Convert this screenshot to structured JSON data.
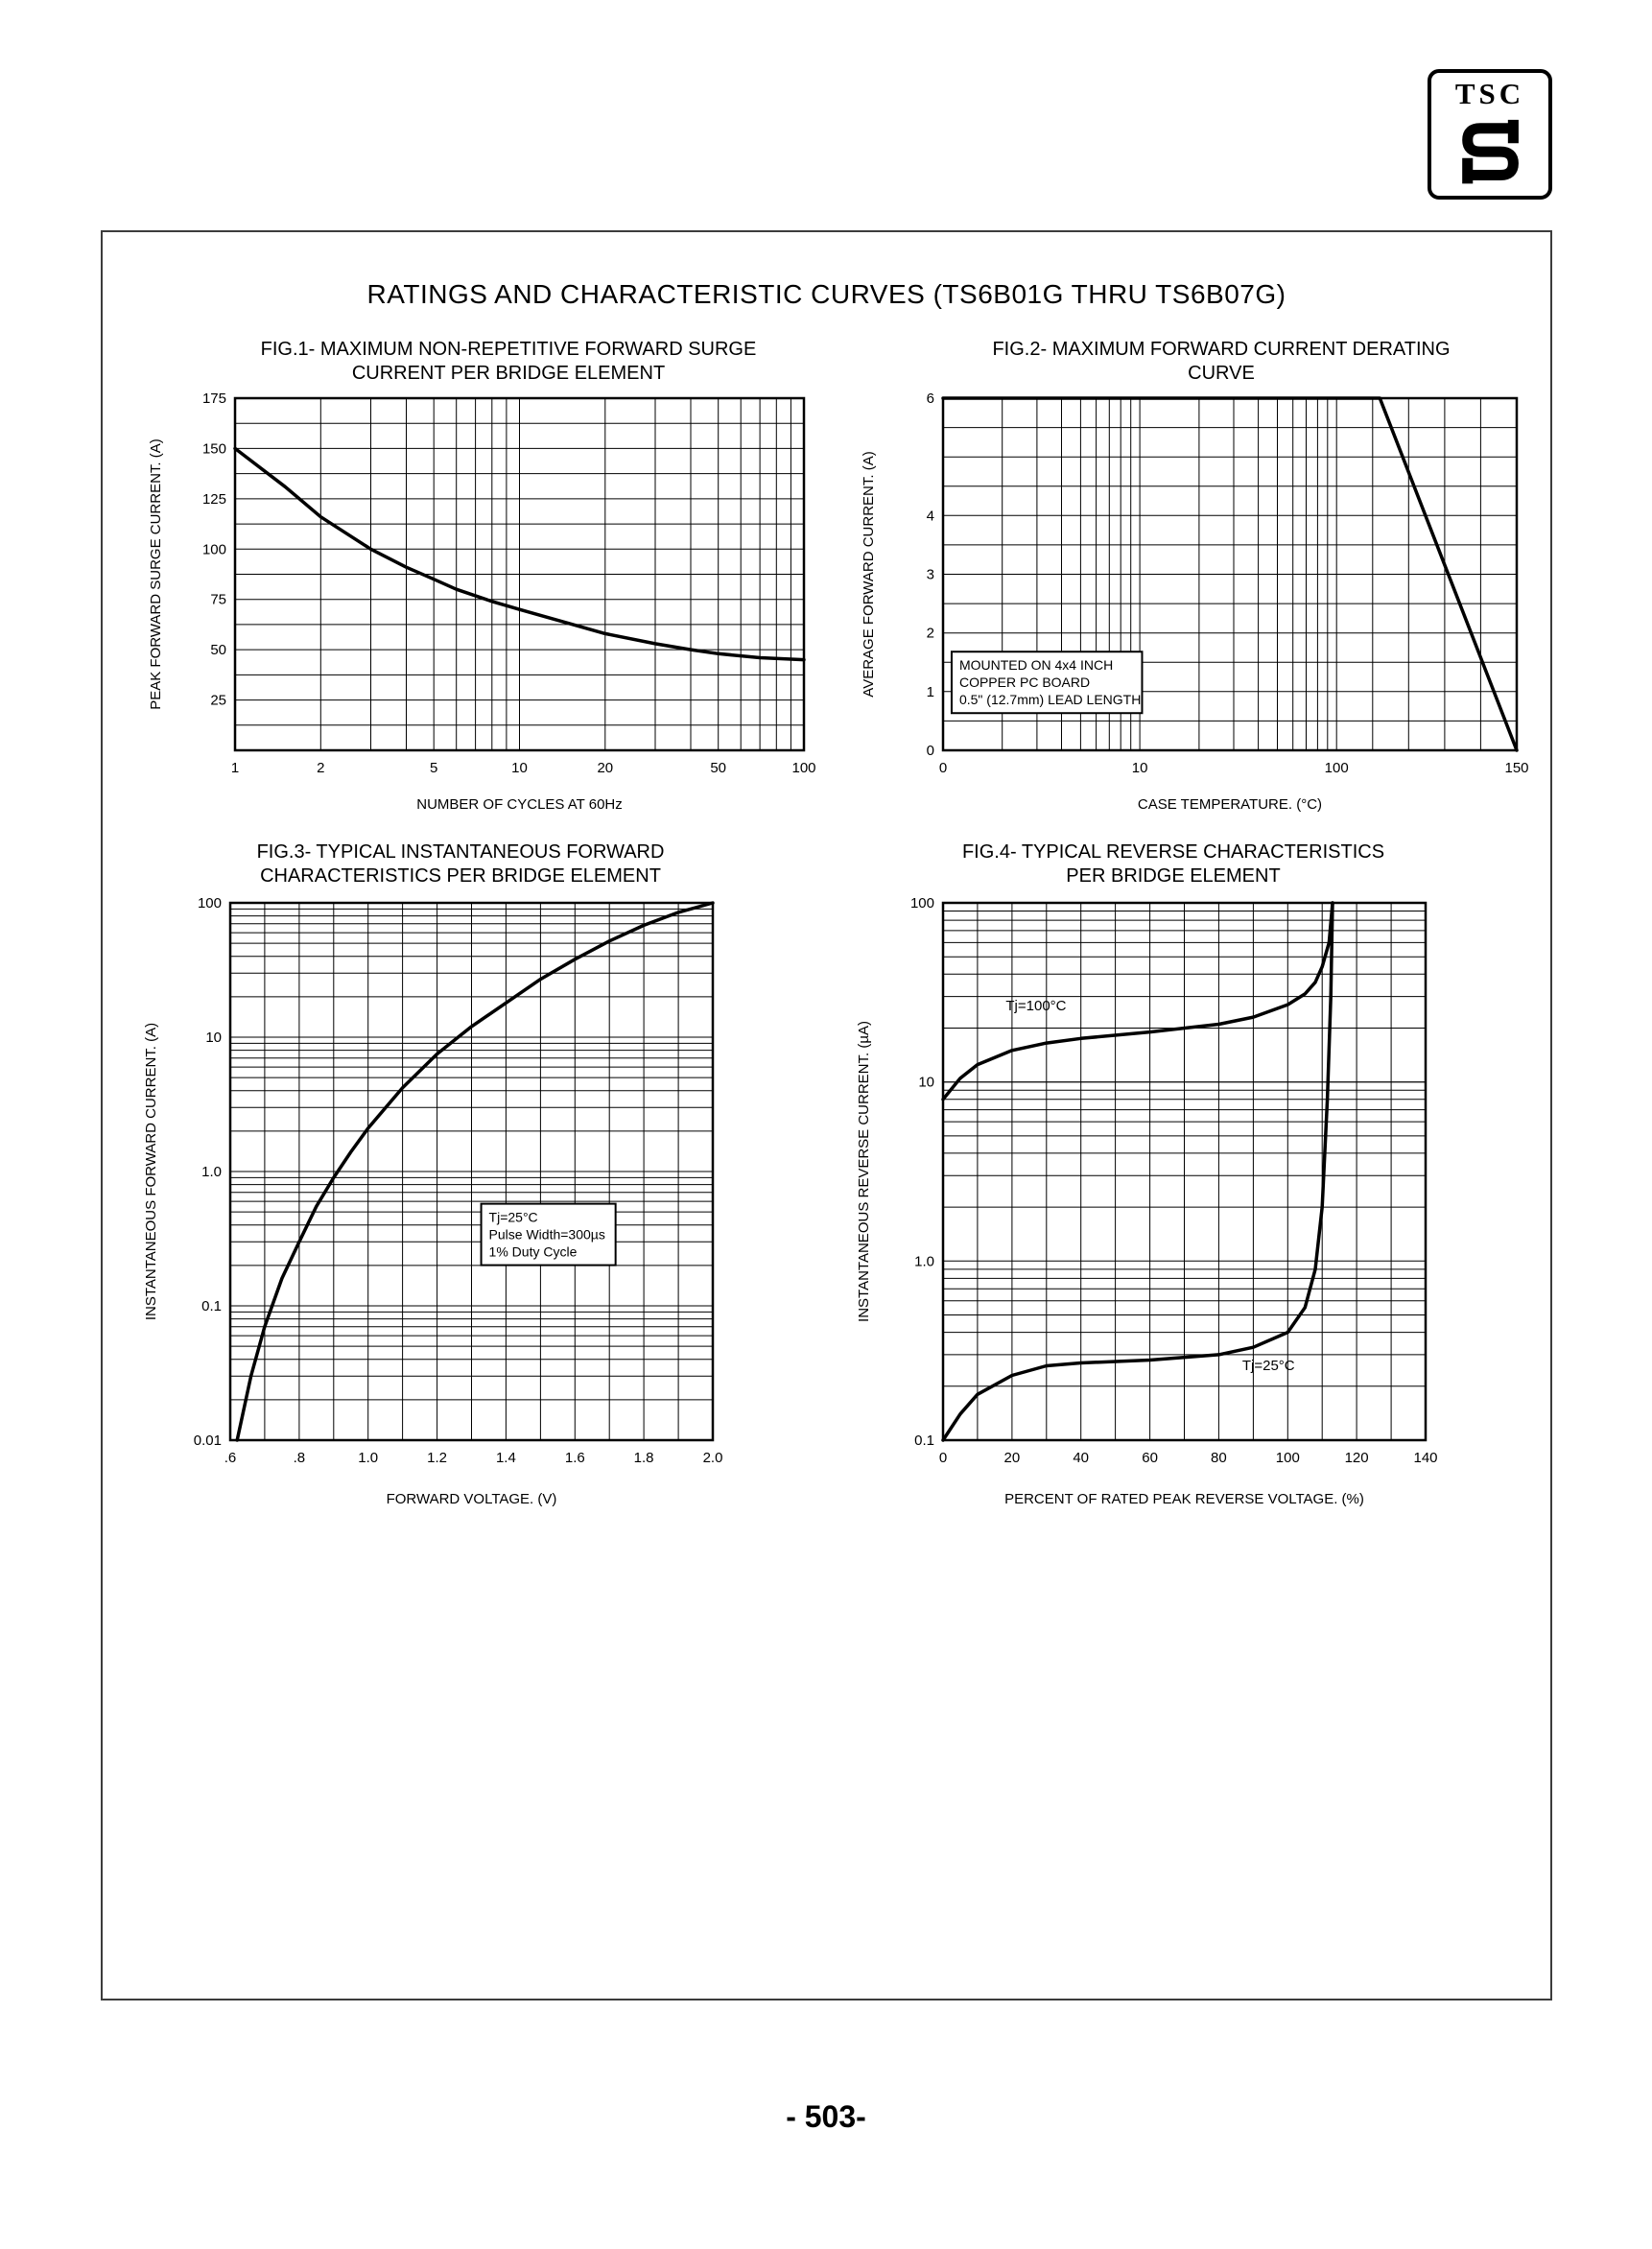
{
  "page": {
    "title": "RATINGS AND CHARACTERISTIC CURVES (TS6B01G THRU TS6B07G)",
    "page_number": "- 503-",
    "logo_text": "TSC"
  },
  "chart_data": [
    {
      "id": "fig1",
      "type": "line",
      "title_lines": [
        "FIG.1- MAXIMUM NON-REPETITIVE FORWARD SURGE",
        "CURRENT PER BRIDGE ELEMENT"
      ],
      "xlabel": "NUMBER OF CYCLES AT 60Hz",
      "ylabel": "PEAK FORWARD SURGE CURRENT. (A)",
      "x_scale": {
        "type": "log",
        "min": 1,
        "max": 100
      },
      "y_scale": {
        "type": "linear",
        "min": 0,
        "max": 175
      },
      "x_grid": {
        "mode": "log"
      },
      "y_grid": {
        "mode": "linear",
        "step": 12.5
      },
      "x_ticks": [
        {
          "v": 1,
          "t": "1"
        },
        {
          "v": 2,
          "t": "2"
        },
        {
          "v": 5,
          "t": "5"
        },
        {
          "v": 10,
          "t": "10"
        },
        {
          "v": 20,
          "t": "20"
        },
        {
          "v": 50,
          "t": "50"
        },
        {
          "v": 100,
          "t": "100"
        }
      ],
      "y_ticks": [
        {
          "v": 175,
          "t": "175"
        },
        {
          "v": 150,
          "t": "150"
        },
        {
          "v": 125,
          "t": "125"
        },
        {
          "v": 100,
          "t": "100"
        },
        {
          "v": 75,
          "t": "75"
        },
        {
          "v": 50,
          "t": "50"
        },
        {
          "v": 25,
          "t": "25"
        }
      ],
      "series": [
        {
          "name": "surge-current",
          "points": [
            [
              1,
              150
            ],
            [
              1.5,
              131
            ],
            [
              2,
              116
            ],
            [
              3,
              100
            ],
            [
              4,
              91
            ],
            [
              5,
              85
            ],
            [
              6,
              80
            ],
            [
              8,
              74
            ],
            [
              10,
              70
            ],
            [
              15,
              63
            ],
            [
              20,
              58
            ],
            [
              30,
              53
            ],
            [
              40,
              50
            ],
            [
              50,
              48
            ],
            [
              70,
              46
            ],
            [
              100,
              45
            ]
          ]
        }
      ],
      "annotations": []
    },
    {
      "id": "fig2",
      "type": "line",
      "title_lines": [
        "FIG.2- MAXIMUM FORWARD CURRENT DERATING",
        "CURVE"
      ],
      "xlabel": "CASE TEMPERATURE. (°C)",
      "ylabel": "AVERAGE FORWARD CURRENT. (A)",
      "x_scale": {
        "type": "loglin",
        "logMin": 1,
        "logMax": 100,
        "logFrac": 0.686,
        "linMax": 150
      },
      "y_scale": {
        "type": "linear",
        "min": 0,
        "max": 6
      },
      "x_grid": {
        "mode": "loglin",
        "step": 10
      },
      "y_grid": {
        "mode": "linear",
        "step": 0.5
      },
      "x_ticks": [
        {
          "v": 0,
          "t": "0"
        },
        {
          "v": 10,
          "t": "10"
        },
        {
          "v": 100,
          "t": "100"
        },
        {
          "v": 150,
          "t": "150"
        }
      ],
      "y_ticks": [
        {
          "v": 6,
          "t": "6"
        },
        {
          "v": 4,
          "t": "4"
        },
        {
          "v": 3,
          "t": "3"
        },
        {
          "v": 2,
          "t": "2"
        },
        {
          "v": 1,
          "t": "1"
        },
        {
          "v": 0,
          "t": "0"
        }
      ],
      "series": [
        {
          "name": "derating",
          "points": [
            [
              0,
              6
            ],
            [
              112,
              6
            ],
            [
              150,
              0
            ]
          ]
        }
      ],
      "annotations": [
        {
          "box": true,
          "fx": 0.015,
          "fy": 0.72,
          "lines": [
            "MOUNTED ON 4x4 INCH",
            "COPPER PC BOARD",
            "0.5\" (12.7mm) LEAD LENGTH"
          ]
        }
      ]
    },
    {
      "id": "fig3",
      "type": "line",
      "title_lines": [
        "FIG.3- TYPICAL INSTANTANEOUS FORWARD",
        "CHARACTERISTICS PER BRIDGE ELEMENT"
      ],
      "xlabel": "FORWARD VOLTAGE. (V)",
      "ylabel": "INSTANTANEOUS FORWARD CURRENT. (A)",
      "x_scale": {
        "type": "linear",
        "min": 0.6,
        "max": 2.0
      },
      "y_scale": {
        "type": "log",
        "min": 0.01,
        "max": 100
      },
      "x_grid": {
        "mode": "linear",
        "step": 0.1
      },
      "y_grid": {
        "mode": "log"
      },
      "x_ticks": [
        {
          "v": 0.6,
          "t": ".6"
        },
        {
          "v": 0.8,
          "t": ".8"
        },
        {
          "v": 1.0,
          "t": "1.0"
        },
        {
          "v": 1.2,
          "t": "1.2"
        },
        {
          "v": 1.4,
          "t": "1.4"
        },
        {
          "v": 1.6,
          "t": "1.6"
        },
        {
          "v": 1.8,
          "t": "1.8"
        },
        {
          "v": 2.0,
          "t": "2.0"
        }
      ],
      "y_ticks": [
        {
          "v": 100,
          "t": "100"
        },
        {
          "v": 10,
          "t": "10"
        },
        {
          "v": 1,
          "t": "1.0"
        },
        {
          "v": 0.1,
          "t": "0.1"
        },
        {
          "v": 0.01,
          "t": "0.01"
        }
      ],
      "series": [
        {
          "name": "forward-characteristic",
          "points": [
            [
              0.62,
              0.01
            ],
            [
              0.66,
              0.03
            ],
            [
              0.7,
              0.07
            ],
            [
              0.75,
              0.16
            ],
            [
              0.8,
              0.3
            ],
            [
              0.85,
              0.55
            ],
            [
              0.9,
              0.9
            ],
            [
              0.95,
              1.4
            ],
            [
              1.0,
              2.1
            ],
            [
              1.1,
              4.2
            ],
            [
              1.2,
              7.5
            ],
            [
              1.3,
              12
            ],
            [
              1.4,
              18
            ],
            [
              1.5,
              27
            ],
            [
              1.6,
              38
            ],
            [
              1.7,
              52
            ],
            [
              1.8,
              68
            ],
            [
              1.9,
              85
            ],
            [
              2.0,
              100
            ]
          ]
        }
      ],
      "annotations": [
        {
          "box": true,
          "fx": 0.52,
          "fy": 0.56,
          "lines": [
            "Tj=25°C",
            "Pulse Width=300µs",
            "1% Duty Cycle"
          ]
        }
      ]
    },
    {
      "id": "fig4",
      "type": "line",
      "title_lines": [
        "FIG.4- TYPICAL REVERSE CHARACTERISTICS",
        "PER BRIDGE ELEMENT"
      ],
      "xlabel": "PERCENT OF RATED PEAK REVERSE VOLTAGE. (%)",
      "ylabel": "INSTANTANEOUS REVERSE CURRENT. (µA)",
      "x_scale": {
        "type": "linear",
        "min": 0,
        "max": 140
      },
      "y_scale": {
        "type": "log",
        "min": 0.1,
        "max": 100
      },
      "x_grid": {
        "mode": "linear",
        "step": 10
      },
      "y_grid": {
        "mode": "log"
      },
      "x_ticks": [
        {
          "v": 0,
          "t": "0"
        },
        {
          "v": 20,
          "t": "20"
        },
        {
          "v": 40,
          "t": "40"
        },
        {
          "v": 60,
          "t": "60"
        },
        {
          "v": 80,
          "t": "80"
        },
        {
          "v": 100,
          "t": "100"
        },
        {
          "v": 120,
          "t": "120"
        },
        {
          "v": 140,
          "t": "140"
        }
      ],
      "y_ticks": [
        {
          "v": 100,
          "t": "100"
        },
        {
          "v": 10,
          "t": "10"
        },
        {
          "v": 1,
          "t": "1.0"
        },
        {
          "v": 0.1,
          "t": "0.1"
        }
      ],
      "series": [
        {
          "name": "Tj=100C",
          "points": [
            [
              0,
              8
            ],
            [
              5,
              10.5
            ],
            [
              10,
              12.5
            ],
            [
              20,
              15
            ],
            [
              30,
              16.5
            ],
            [
              40,
              17.5
            ],
            [
              60,
              19
            ],
            [
              80,
              21
            ],
            [
              90,
              23
            ],
            [
              100,
              27
            ],
            [
              105,
              31
            ],
            [
              108,
              36
            ],
            [
              110,
              44
            ],
            [
              112,
              60
            ],
            [
              113,
              100
            ]
          ]
        },
        {
          "name": "Tj=25C",
          "points": [
            [
              0,
              0.1
            ],
            [
              5,
              0.14
            ],
            [
              10,
              0.18
            ],
            [
              20,
              0.23
            ],
            [
              30,
              0.26
            ],
            [
              40,
              0.27
            ],
            [
              60,
              0.28
            ],
            [
              80,
              0.3
            ],
            [
              90,
              0.33
            ],
            [
              100,
              0.4
            ],
            [
              105,
              0.55
            ],
            [
              108,
              0.9
            ],
            [
              110,
              2
            ],
            [
              111.5,
              8
            ],
            [
              112.5,
              30
            ],
            [
              113,
              100
            ]
          ]
        }
      ],
      "annotations": [
        {
          "box": false,
          "fx": 0.13,
          "fy": 0.2,
          "lines": [
            "Tj=100°C"
          ]
        },
        {
          "box": false,
          "fx": 0.62,
          "fy": 0.87,
          "lines": [
            "Tj=25°C"
          ]
        }
      ]
    }
  ]
}
